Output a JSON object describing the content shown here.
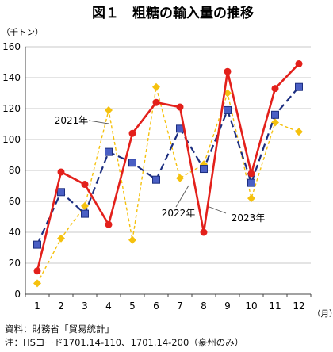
{
  "chart_data": {
    "type": "line",
    "title": "図１　粗糖の輸入量の推移",
    "ylabel": "（千トン）",
    "xlabel": "（月）",
    "ylim": [
      0,
      160
    ],
    "yticks": [
      0,
      20,
      40,
      60,
      80,
      100,
      120,
      140,
      160
    ],
    "x": [
      1,
      2,
      3,
      4,
      5,
      6,
      7,
      8,
      9,
      10,
      11,
      12
    ],
    "grid": "horizontal",
    "series": [
      {
        "name": "2021年",
        "color": "#f5c10e",
        "style": "dashed-thin",
        "marker": "diamond",
        "values": [
          7,
          36,
          57,
          119,
          35,
          134,
          75,
          84,
          130,
          62,
          111,
          105
        ]
      },
      {
        "name": "2022年",
        "color": "#1c2e80",
        "style": "dashed-thick",
        "marker": "square",
        "values": [
          32,
          66,
          52,
          92,
          85,
          74,
          107,
          81,
          119,
          72,
          116,
          134
        ]
      },
      {
        "name": "2023年",
        "color": "#e3201b",
        "style": "solid",
        "marker": "circle",
        "values": [
          15,
          79,
          71,
          45,
          104,
          124,
          121,
          40,
          144,
          78,
          133,
          149
        ]
      }
    ]
  },
  "notes": {
    "source": "資料：財務省「貿易統計」",
    "note": "注：HSコード1701.14-110、1701.14-200（豪州のみ）"
  }
}
